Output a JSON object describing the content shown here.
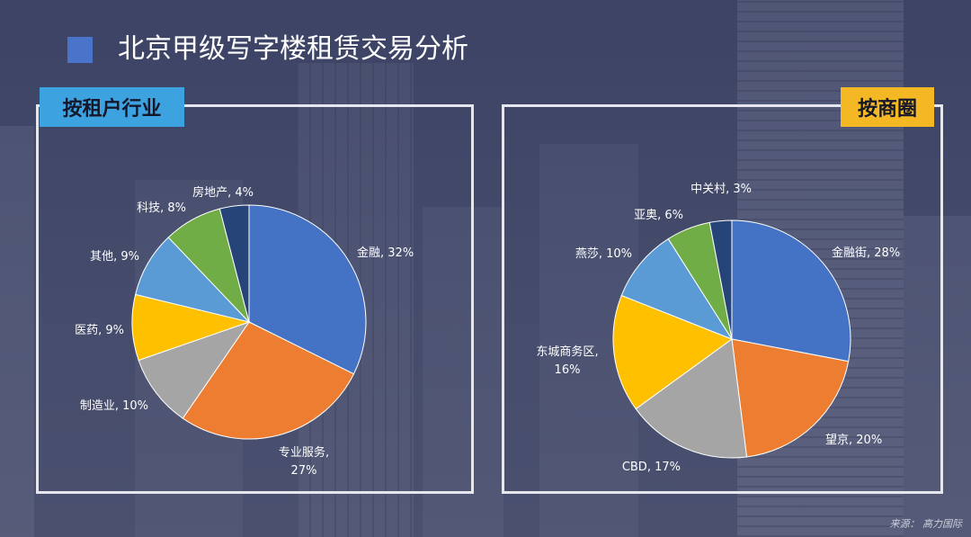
{
  "slide": {
    "title": "北京甲级写字楼租赁交易分析",
    "source": "来源： 高力国际"
  },
  "theme": {
    "title_marker": "#4a74c9",
    "panel_border": "#e6e7ee",
    "tenant_tag_bg": "#3da3e0",
    "district_tag_bg": "#f3b824",
    "tag_text": "#15182a",
    "label_text": "#ffffff"
  },
  "chart_data": [
    {
      "type": "pie",
      "title": "按租户行业",
      "categories": [
        "金融",
        "专业服务",
        "制造业",
        "医药",
        "其他",
        "科技",
        "房地产"
      ],
      "values": [
        32,
        27,
        10,
        9,
        9,
        8,
        4
      ],
      "unit": "%",
      "colors": [
        "#4472c4",
        "#ed7d31",
        "#a5a5a5",
        "#ffc000",
        "#5b9bd5",
        "#70ad47",
        "#264478"
      ]
    },
    {
      "type": "pie",
      "title": "按商圈",
      "categories": [
        "金融街",
        "望京",
        "CBD",
        "东城商务区",
        "燕莎",
        "亚奥",
        "中关村"
      ],
      "values": [
        28,
        20,
        17,
        16,
        10,
        6,
        3
      ],
      "unit": "%",
      "colors": [
        "#4472c4",
        "#ed7d31",
        "#a5a5a5",
        "#ffc000",
        "#5b9bd5",
        "#70ad47",
        "#264478"
      ]
    }
  ]
}
